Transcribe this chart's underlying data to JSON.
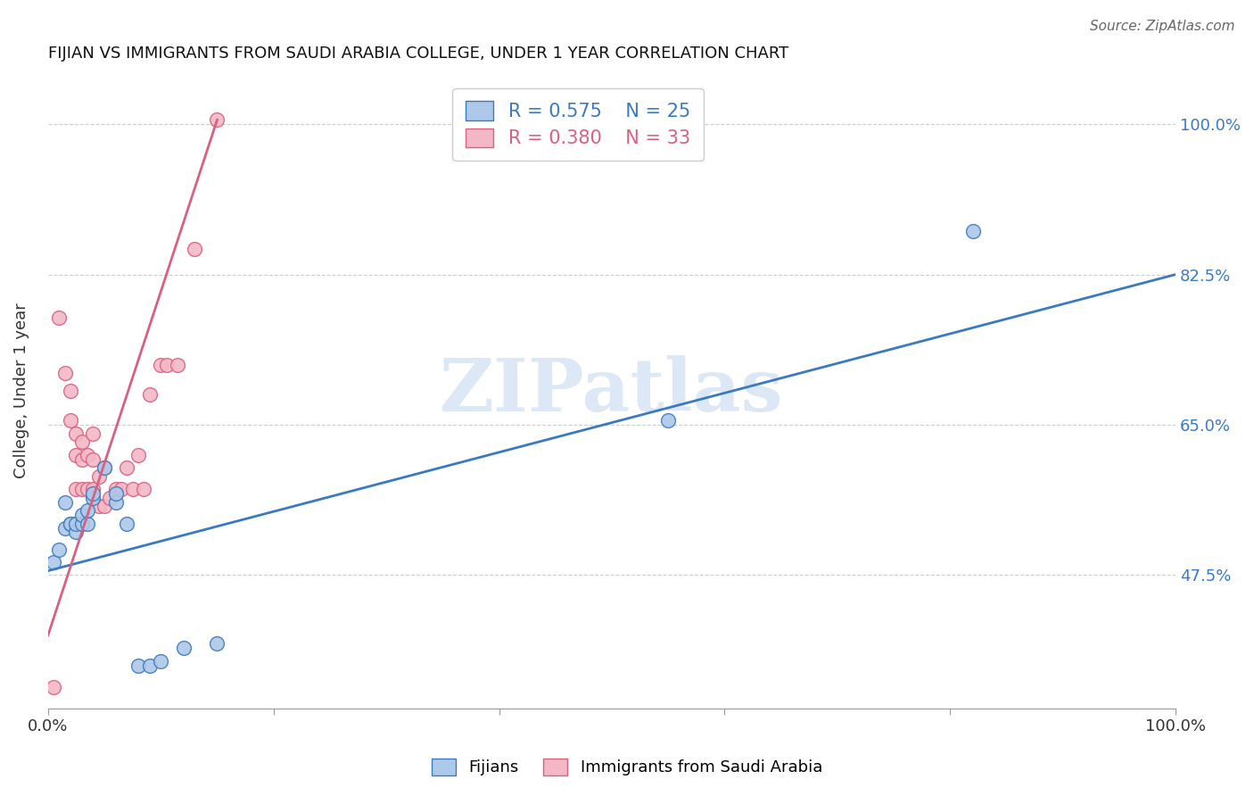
{
  "title": "FIJIAN VS IMMIGRANTS FROM SAUDI ARABIA COLLEGE, UNDER 1 YEAR CORRELATION CHART",
  "source": "Source: ZipAtlas.com",
  "ylabel": "College, Under 1 year",
  "xlim": [
    0.0,
    1.0
  ],
  "ylim": [
    0.32,
    1.06
  ],
  "ytick_labels": [
    "47.5%",
    "65.0%",
    "82.5%",
    "100.0%"
  ],
  "ytick_values": [
    0.475,
    0.65,
    0.825,
    1.0
  ],
  "xtick_values": [
    0.0,
    0.2,
    0.4,
    0.6,
    0.8,
    1.0
  ],
  "xtick_labels": [
    "0.0%",
    "",
    "",
    "",
    "",
    "100.0%"
  ],
  "blue_label": "Fijians",
  "pink_label": "Immigrants from Saudi Arabia",
  "blue_R": "0.575",
  "blue_N": "25",
  "pink_R": "0.380",
  "pink_N": "33",
  "blue_color": "#adc8e8",
  "pink_color": "#f2b8c6",
  "blue_line_color": "#3a7abf",
  "pink_line_color": "#d96080",
  "watermark": "ZIPatlas",
  "watermark_color": "#dce8f5",
  "blue_dots_x": [
    0.005,
    0.01,
    0.015,
    0.015,
    0.02,
    0.02,
    0.025,
    0.025,
    0.03,
    0.03,
    0.035,
    0.035,
    0.04,
    0.04,
    0.05,
    0.06,
    0.06,
    0.07,
    0.08,
    0.09,
    0.1,
    0.12,
    0.15,
    0.55,
    0.82
  ],
  "blue_dots_y": [
    0.49,
    0.505,
    0.53,
    0.56,
    0.535,
    0.535,
    0.525,
    0.535,
    0.535,
    0.545,
    0.535,
    0.55,
    0.565,
    0.57,
    0.6,
    0.56,
    0.57,
    0.535,
    0.37,
    0.37,
    0.375,
    0.39,
    0.395,
    0.655,
    0.875
  ],
  "pink_dots_x": [
    0.005,
    0.01,
    0.015,
    0.02,
    0.02,
    0.025,
    0.025,
    0.025,
    0.03,
    0.03,
    0.03,
    0.035,
    0.035,
    0.04,
    0.04,
    0.04,
    0.045,
    0.045,
    0.05,
    0.05,
    0.055,
    0.06,
    0.065,
    0.07,
    0.075,
    0.08,
    0.085,
    0.09,
    0.1,
    0.105,
    0.115,
    0.13,
    0.15
  ],
  "pink_dots_y": [
    0.345,
    0.775,
    0.71,
    0.655,
    0.69,
    0.575,
    0.615,
    0.64,
    0.575,
    0.61,
    0.63,
    0.575,
    0.615,
    0.575,
    0.61,
    0.64,
    0.555,
    0.59,
    0.555,
    0.6,
    0.565,
    0.575,
    0.575,
    0.6,
    0.575,
    0.615,
    0.575,
    0.685,
    0.72,
    0.72,
    0.72,
    0.855,
    1.005
  ],
  "blue_line_x0": 0.0,
  "blue_line_x1": 1.0,
  "blue_line_y0": 0.48,
  "blue_line_y1": 0.825,
  "pink_line_x0": 0.0,
  "pink_line_x1": 0.15,
  "pink_line_y0": 0.405,
  "pink_line_y1": 1.005,
  "figsize": [
    14.06,
    8.92
  ],
  "dpi": 100
}
